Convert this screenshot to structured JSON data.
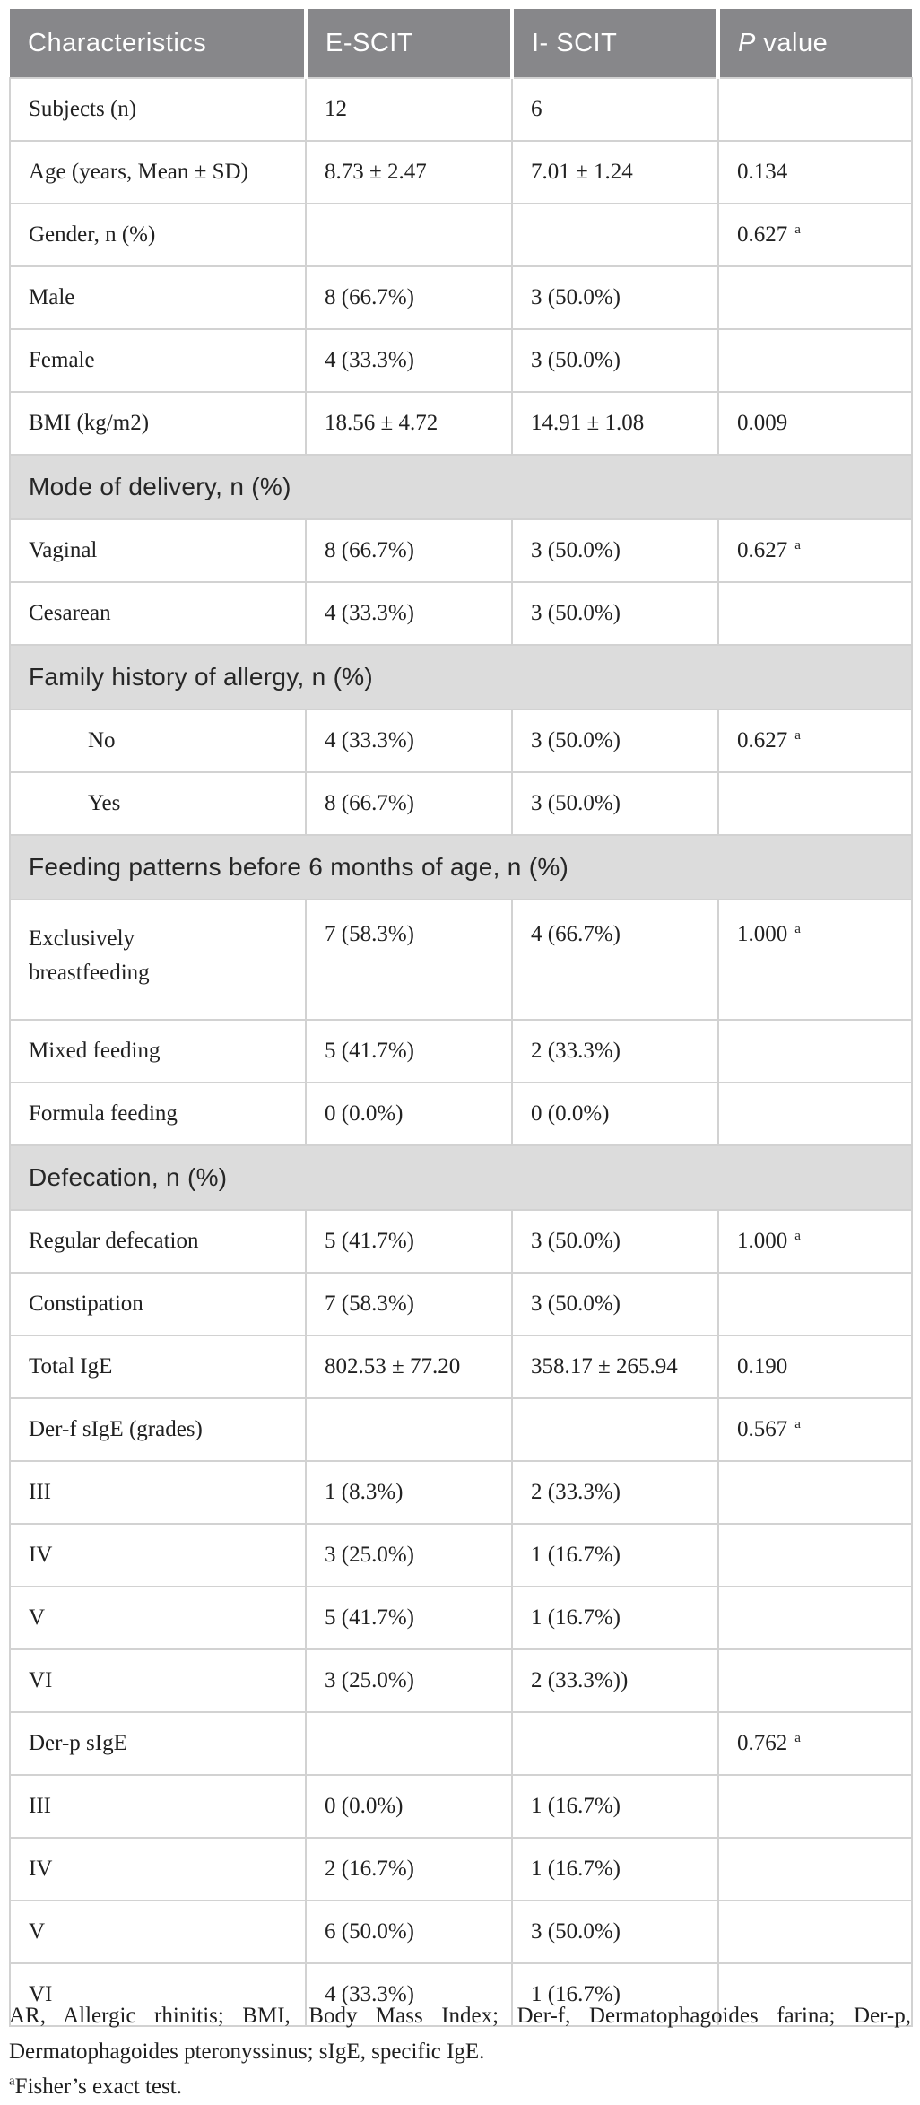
{
  "table": {
    "header": {
      "characteristics": "Characteristics",
      "escit": "E-SCIT",
      "iscit": "I- SCIT",
      "p_italic": "P",
      "p_rest": "value"
    },
    "rows": [
      {
        "type": "data",
        "label": "Subjects (n)",
        "escit": "12",
        "iscit": "6",
        "p": ""
      },
      {
        "type": "data",
        "label": "Age (years, Mean ± SD)",
        "escit": "8.73 ± 2.47",
        "iscit": "7.01 ± 1.24",
        "p": "0.134"
      },
      {
        "type": "data",
        "label": "Gender, n (%)",
        "escit": "",
        "iscit": "",
        "p": "0.627",
        "psup": "a"
      },
      {
        "type": "data",
        "label": "Male",
        "escit": "8 (66.7%)",
        "iscit": "3 (50.0%)",
        "p": ""
      },
      {
        "type": "data",
        "label": "Female",
        "escit": "4 (33.3%)",
        "iscit": "3 (50.0%)",
        "p": ""
      },
      {
        "type": "data",
        "label": "BMI (kg/m2)",
        "escit": "18.56 ± 4.72",
        "iscit": "14.91 ± 1.08",
        "p": "0.009"
      },
      {
        "type": "section",
        "label": "Mode of delivery, n (%)"
      },
      {
        "type": "data",
        "label": "Vaginal",
        "escit": "8 (66.7%)",
        "iscit": "3 (50.0%)",
        "p": "0.627",
        "psup": "a"
      },
      {
        "type": "data",
        "label": "Cesarean",
        "escit": "4 (33.3%)",
        "iscit": "3 (50.0%)",
        "p": ""
      },
      {
        "type": "section",
        "label": "Family history of allergy, n (%)"
      },
      {
        "type": "data",
        "label": "No",
        "indent": true,
        "escit": "4 (33.3%)",
        "iscit": "3 (50.0%)",
        "p": "0.627",
        "psup": "a"
      },
      {
        "type": "data",
        "label": "Yes",
        "indent": true,
        "escit": "8 (66.7%)",
        "iscit": "3 (50.0%)",
        "p": ""
      },
      {
        "type": "section",
        "label": "Feeding patterns before 6 months of age, n (%)"
      },
      {
        "type": "data",
        "label": "Exclusively breastfeeding",
        "tall": true,
        "escit": "7 (58.3%)",
        "iscit": "4 (66.7%)",
        "p": "1.000",
        "psup": "a"
      },
      {
        "type": "data",
        "label": "Mixed feeding",
        "escit": "5 (41.7%)",
        "iscit": "2 (33.3%)",
        "p": ""
      },
      {
        "type": "data",
        "label": "Formula feeding",
        "escit": "0 (0.0%)",
        "iscit": "0 (0.0%)",
        "p": ""
      },
      {
        "type": "section",
        "label": "Defecation, n (%)"
      },
      {
        "type": "data",
        "label": "Regular defecation",
        "escit": "5 (41.7%)",
        "iscit": "3 (50.0%)",
        "p": "1.000",
        "psup": "a"
      },
      {
        "type": "data",
        "label": "Constipation",
        "escit": "7 (58.3%)",
        "iscit": "3 (50.0%)",
        "p": ""
      },
      {
        "type": "data",
        "label": "Total IgE",
        "escit": "802.53 ± 77.20",
        "iscit": "358.17 ± 265.94",
        "p": "0.190"
      },
      {
        "type": "data",
        "label": "Der-f sIgE (grades)",
        "escit": "",
        "iscit": "",
        "p": "0.567",
        "psup": "a"
      },
      {
        "type": "data",
        "label": "III",
        "escit": "1 (8.3%)",
        "iscit": "2 (33.3%)",
        "p": ""
      },
      {
        "type": "data",
        "label": "IV",
        "escit": "3 (25.0%)",
        "iscit": "1 (16.7%)",
        "p": ""
      },
      {
        "type": "data",
        "label": "V",
        "escit": "5 (41.7%)",
        "iscit": "1 (16.7%)",
        "p": ""
      },
      {
        "type": "data",
        "label": "VI",
        "escit": "3 (25.0%)",
        "iscit": "2 (33.3%))",
        "p": ""
      },
      {
        "type": "data",
        "label": "Der-p sIgE",
        "escit": "",
        "iscit": "",
        "p": "0.762",
        "psup": "a"
      },
      {
        "type": "data",
        "label": "III",
        "escit": "0 (0.0%)",
        "iscit": "1 (16.7%)",
        "p": ""
      },
      {
        "type": "data",
        "label": "IV",
        "escit": "2 (16.7%)",
        "iscit": "1 (16.7%)",
        "p": ""
      },
      {
        "type": "data",
        "label": "V",
        "escit": "6 (50.0%)",
        "iscit": "3 (50.0%)",
        "p": ""
      },
      {
        "type": "data",
        "label": "VI",
        "escit": "4 (33.3%)",
        "iscit": "1 (16.7%)",
        "p": ""
      }
    ]
  },
  "footnotes": {
    "abbreviations": "AR, Allergic rhinitis; BMI, Body Mass Index; Der-f, Dermatophagoides farina; Der-p, Dermatophagoides pteronyssinus; sIgE, specific IgE.",
    "fisher_sup": "a",
    "fisher_text": "Fisher’s exact test."
  },
  "colors": {
    "header_bg": "#87878a",
    "section_bg": "#dcdcdc",
    "border": "#d2d2d2"
  }
}
